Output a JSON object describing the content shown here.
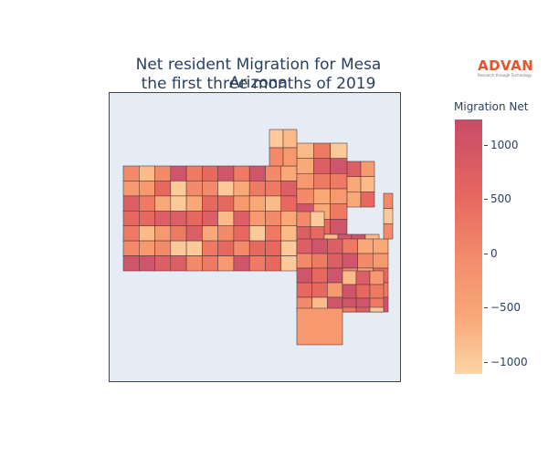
{
  "title_line1": "Net resident Migration for Mesa Arizona",
  "title_line2": "the first three months of 2019",
  "logo": {
    "name": "ADVAN",
    "tagline": "Research through Technology"
  },
  "colorbar": {
    "title": "Migration Net",
    "ticks": [
      "1000",
      "500",
      "0",
      "−500",
      "−1000"
    ]
  },
  "colors": {
    "dark": "#c84b67",
    "mid": "#ef7a63",
    "light": "#fcd5a6",
    "border": "#5a3a3a",
    "background": "#e5ecf6"
  }
}
